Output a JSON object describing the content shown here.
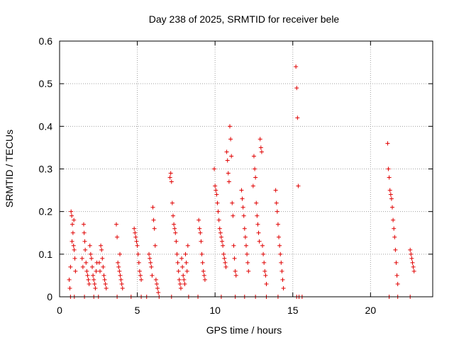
{
  "chart_data": {
    "type": "scatter",
    "title": "Day 238 of 2025, SRMTID for receiver bele",
    "xlabel": "GPS time / hours",
    "ylabel": "SRMTID / TECUs",
    "xlim": [
      0,
      24
    ],
    "ylim": [
      0,
      0.6
    ],
    "xticks": [
      0,
      5,
      10,
      15,
      20
    ],
    "xtick_labels": [
      "0",
      "5",
      "10",
      "15",
      "20"
    ],
    "yticks": [
      0,
      0.1,
      0.2,
      0.3,
      0.4,
      0.5,
      0.6
    ],
    "ytick_labels": [
      "0",
      "0.1",
      "0.2",
      "0.3",
      "0.4",
      "0.5",
      "0.6"
    ],
    "grid": true,
    "marker": "+",
    "color": "#e00000",
    "series": [
      {
        "name": "SRMTID",
        "points": [
          [
            0.62,
            0.04
          ],
          [
            0.66,
            0.02
          ],
          [
            0.7,
            0.07
          ],
          [
            0.74,
            0.2
          ],
          [
            0.78,
            0.19
          ],
          [
            0.82,
            0.17
          ],
          [
            0.86,
            0.15
          ],
          [
            0.9,
            0.12
          ],
          [
            0.94,
            0.11
          ],
          [
            0.98,
            0.09
          ],
          [
            1.02,
            0.06
          ],
          [
            0.8,
            0.13
          ],
          [
            0.92,
            0.18
          ],
          [
            0.7,
            0.0
          ],
          [
            0.95,
            0.0
          ],
          [
            1.45,
            0.09
          ],
          [
            1.5,
            0.07
          ],
          [
            1.55,
            0.17
          ],
          [
            1.58,
            0.15
          ],
          [
            1.62,
            0.13
          ],
          [
            1.65,
            0.11
          ],
          [
            1.7,
            0.08
          ],
          [
            1.75,
            0.06
          ],
          [
            1.8,
            0.05
          ],
          [
            1.85,
            0.04
          ],
          [
            1.9,
            0.03
          ],
          [
            1.95,
            0.12
          ],
          [
            2.0,
            0.1
          ],
          [
            2.05,
            0.09
          ],
          [
            2.1,
            0.07
          ],
          [
            2.15,
            0.05
          ],
          [
            2.2,
            0.04
          ],
          [
            2.25,
            0.03
          ],
          [
            2.3,
            0.02
          ],
          [
            2.35,
            0.06
          ],
          [
            2.4,
            0.08
          ],
          [
            1.6,
            0.0
          ],
          [
            2.2,
            0.0
          ],
          [
            2.55,
            0.08
          ],
          [
            2.6,
            0.06
          ],
          [
            2.65,
            0.12
          ],
          [
            2.7,
            0.11
          ],
          [
            2.75,
            0.09
          ],
          [
            2.8,
            0.07
          ],
          [
            2.85,
            0.05
          ],
          [
            2.9,
            0.04
          ],
          [
            2.95,
            0.03
          ],
          [
            3.0,
            0.02
          ],
          [
            2.5,
            0.0
          ],
          [
            3.65,
            0.17
          ],
          [
            3.7,
            0.14
          ],
          [
            3.75,
            0.08
          ],
          [
            3.8,
            0.07
          ],
          [
            3.85,
            0.06
          ],
          [
            3.9,
            0.05
          ],
          [
            3.95,
            0.04
          ],
          [
            4.0,
            0.03
          ],
          [
            4.05,
            0.02
          ],
          [
            3.88,
            0.1
          ],
          [
            3.7,
            0.0
          ],
          [
            4.8,
            0.16
          ],
          [
            4.85,
            0.15
          ],
          [
            4.9,
            0.14
          ],
          [
            4.95,
            0.13
          ],
          [
            5.0,
            0.12
          ],
          [
            5.05,
            0.1
          ],
          [
            5.1,
            0.08
          ],
          [
            5.15,
            0.06
          ],
          [
            5.2,
            0.05
          ],
          [
            5.25,
            0.04
          ],
          [
            4.6,
            0.0
          ],
          [
            5.25,
            0.0
          ],
          [
            5.75,
            0.1
          ],
          [
            5.8,
            0.09
          ],
          [
            5.85,
            0.08
          ],
          [
            5.9,
            0.07
          ],
          [
            5.95,
            0.05
          ],
          [
            6.0,
            0.21
          ],
          [
            6.05,
            0.18
          ],
          [
            6.1,
            0.16
          ],
          [
            6.15,
            0.12
          ],
          [
            6.2,
            0.04
          ],
          [
            6.25,
            0.03
          ],
          [
            6.3,
            0.02
          ],
          [
            6.35,
            0.01
          ],
          [
            5.6,
            0.0
          ],
          [
            6.4,
            0.0
          ],
          [
            7.1,
            0.28
          ],
          [
            7.15,
            0.29
          ],
          [
            7.2,
            0.27
          ],
          [
            7.25,
            0.22
          ],
          [
            7.3,
            0.19
          ],
          [
            7.35,
            0.17
          ],
          [
            7.4,
            0.16
          ],
          [
            7.45,
            0.15
          ],
          [
            7.5,
            0.13
          ],
          [
            7.55,
            0.1
          ],
          [
            7.6,
            0.08
          ],
          [
            7.65,
            0.06
          ],
          [
            7.7,
            0.04
          ],
          [
            7.75,
            0.03
          ],
          [
            7.8,
            0.02
          ],
          [
            7.85,
            0.09
          ],
          [
            7.9,
            0.07
          ],
          [
            7.95,
            0.05
          ],
          [
            8.0,
            0.04
          ],
          [
            8.05,
            0.03
          ],
          [
            8.1,
            0.1
          ],
          [
            8.15,
            0.08
          ],
          [
            8.2,
            0.06
          ],
          [
            8.25,
            0.12
          ],
          [
            7.2,
            0.0
          ],
          [
            8.3,
            0.0
          ],
          [
            8.95,
            0.18
          ],
          [
            9.0,
            0.16
          ],
          [
            9.05,
            0.15
          ],
          [
            9.1,
            0.13
          ],
          [
            9.15,
            0.1
          ],
          [
            9.2,
            0.08
          ],
          [
            9.25,
            0.06
          ],
          [
            9.3,
            0.05
          ],
          [
            9.35,
            0.04
          ],
          [
            8.9,
            0.0
          ],
          [
            9.95,
            0.3
          ],
          [
            10.0,
            0.26
          ],
          [
            10.05,
            0.25
          ],
          [
            10.1,
            0.24
          ],
          [
            10.15,
            0.22
          ],
          [
            10.2,
            0.2
          ],
          [
            10.25,
            0.18
          ],
          [
            10.3,
            0.16
          ],
          [
            10.35,
            0.15
          ],
          [
            10.4,
            0.14
          ],
          [
            10.45,
            0.13
          ],
          [
            10.5,
            0.12
          ],
          [
            10.55,
            0.1
          ],
          [
            10.6,
            0.09
          ],
          [
            10.65,
            0.08
          ],
          [
            10.7,
            0.07
          ],
          [
            10.75,
            0.34
          ],
          [
            10.8,
            0.32
          ],
          [
            10.85,
            0.29
          ],
          [
            10.9,
            0.27
          ],
          [
            10.95,
            0.4
          ],
          [
            11.0,
            0.37
          ],
          [
            11.05,
            0.33
          ],
          [
            11.1,
            0.22
          ],
          [
            11.15,
            0.19
          ],
          [
            11.2,
            0.12
          ],
          [
            11.25,
            0.09
          ],
          [
            11.3,
            0.06
          ],
          [
            11.35,
            0.05
          ],
          [
            10.4,
            0.0
          ],
          [
            11.3,
            0.0
          ],
          [
            11.7,
            0.25
          ],
          [
            11.75,
            0.23
          ],
          [
            11.8,
            0.21
          ],
          [
            11.85,
            0.19
          ],
          [
            11.9,
            0.16
          ],
          [
            11.95,
            0.14
          ],
          [
            12.0,
            0.12
          ],
          [
            12.05,
            0.1
          ],
          [
            12.1,
            0.08
          ],
          [
            12.15,
            0.06
          ],
          [
            11.9,
            0.0
          ],
          [
            12.45,
            0.26
          ],
          [
            12.5,
            0.33
          ],
          [
            12.55,
            0.3
          ],
          [
            12.6,
            0.28
          ],
          [
            12.65,
            0.22
          ],
          [
            12.7,
            0.19
          ],
          [
            12.75,
            0.17
          ],
          [
            12.8,
            0.15
          ],
          [
            12.85,
            0.13
          ],
          [
            12.9,
            0.37
          ],
          [
            12.95,
            0.35
          ],
          [
            13.0,
            0.34
          ],
          [
            13.05,
            0.12
          ],
          [
            13.1,
            0.1
          ],
          [
            13.15,
            0.08
          ],
          [
            13.2,
            0.06
          ],
          [
            13.25,
            0.05
          ],
          [
            13.3,
            0.03
          ],
          [
            12.6,
            0.0
          ],
          [
            13.3,
            0.0
          ],
          [
            13.9,
            0.25
          ],
          [
            13.95,
            0.22
          ],
          [
            14.0,
            0.2
          ],
          [
            14.05,
            0.17
          ],
          [
            14.1,
            0.14
          ],
          [
            14.15,
            0.12
          ],
          [
            14.2,
            0.1
          ],
          [
            14.25,
            0.08
          ],
          [
            14.3,
            0.06
          ],
          [
            14.35,
            0.04
          ],
          [
            14.4,
            0.02
          ],
          [
            14.05,
            0.0
          ],
          [
            15.2,
            0.54
          ],
          [
            15.25,
            0.49
          ],
          [
            15.3,
            0.42
          ],
          [
            15.35,
            0.26
          ],
          [
            15.25,
            0.0
          ],
          [
            15.4,
            0.0
          ],
          [
            15.6,
            0.0
          ],
          [
            21.1,
            0.36
          ],
          [
            21.15,
            0.3
          ],
          [
            21.2,
            0.28
          ],
          [
            21.25,
            0.25
          ],
          [
            21.3,
            0.24
          ],
          [
            21.35,
            0.23
          ],
          [
            21.4,
            0.21
          ],
          [
            21.45,
            0.18
          ],
          [
            21.5,
            0.16
          ],
          [
            21.55,
            0.14
          ],
          [
            21.6,
            0.11
          ],
          [
            21.65,
            0.08
          ],
          [
            21.7,
            0.05
          ],
          [
            21.75,
            0.03
          ],
          [
            21.2,
            0.0
          ],
          [
            21.75,
            0.0
          ],
          [
            22.55,
            0.11
          ],
          [
            22.6,
            0.1
          ],
          [
            22.65,
            0.09
          ],
          [
            22.7,
            0.08
          ],
          [
            22.75,
            0.07
          ],
          [
            22.8,
            0.06
          ],
          [
            22.55,
            0.0
          ]
        ]
      }
    ]
  }
}
